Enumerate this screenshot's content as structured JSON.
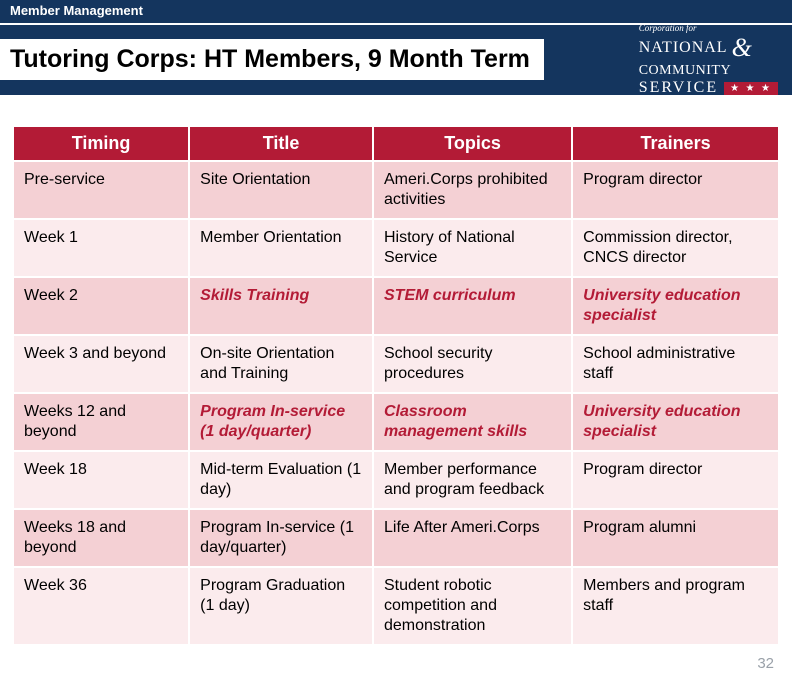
{
  "header": {
    "section_label": "Member Management",
    "title": "Tutoring Corps: HT Members, 9 Month Term",
    "logo": {
      "line1": "Corporation for",
      "line2": "NATIONAL",
      "line3": "COMMUNITY",
      "line4": "SERVICE"
    }
  },
  "colors": {
    "banner_bg": "#14355e",
    "header_bg": "#b31b36",
    "row_alt_bg": "#f4d0d4",
    "row_bg": "#fbebed",
    "italic_color": "#b31b36"
  },
  "table": {
    "columns": [
      "Timing",
      "Title",
      "Topics",
      "Trainers"
    ],
    "rows": [
      {
        "timing": "Pre-service",
        "title": "Site Orientation",
        "topics": "Ameri.Corps prohibited activities",
        "trainers": "Program director",
        "em": false
      },
      {
        "timing": "Week 1",
        "title": "Member Orientation",
        "topics": "History of National Service",
        "trainers": "Commission director, CNCS director",
        "em": false
      },
      {
        "timing": "Week 2",
        "title": "Skills Training",
        "topics": "STEM curriculum",
        "trainers": "University education specialist",
        "em": true
      },
      {
        "timing": "Week 3 and beyond",
        "title": "On-site Orientation and Training",
        "topics": "School security procedures",
        "trainers": "School administrative staff",
        "em": false
      },
      {
        "timing": "Weeks 12 and beyond",
        "title": "Program In-service (1 day/quarter)",
        "topics": "Classroom management skills",
        "trainers": "University education specialist",
        "em": true
      },
      {
        "timing": "Week 18",
        "title": "Mid-term Evaluation (1 day)",
        "topics": "Member performance and program feedback",
        "trainers": "Program director",
        "em": false
      },
      {
        "timing": "Weeks 18 and beyond",
        "title": "Program In-service (1 day/quarter)",
        "topics": "Life After Ameri.Corps",
        "trainers": "Program alumni",
        "em": false
      },
      {
        "timing": "Week 36",
        "title": "Program Graduation (1 day)",
        "topics": "Student robotic competition and demonstration",
        "trainers": "Members and program staff",
        "em": false
      }
    ]
  },
  "page_number": "32"
}
